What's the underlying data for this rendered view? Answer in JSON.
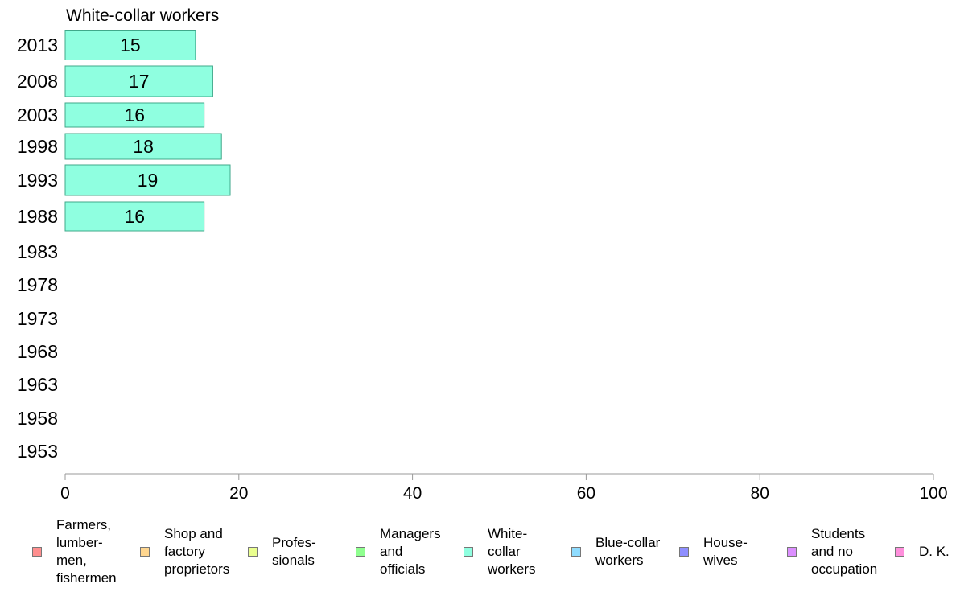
{
  "chart_data": {
    "type": "bar",
    "orientation": "horizontal",
    "title": "White-collar workers",
    "xlabel": "",
    "ylabel": "",
    "xlim": [
      0,
      100
    ],
    "x_ticks": [
      "0",
      "20",
      "40",
      "60",
      "80",
      "100"
    ],
    "categories": [
      "2013",
      "2008",
      "2003",
      "1998",
      "1993",
      "1988",
      "1983",
      "1978",
      "1973",
      "1968",
      "1963",
      "1958",
      "1953"
    ],
    "values": [
      15,
      17,
      16,
      18,
      19,
      16,
      null,
      null,
      null,
      null,
      null,
      null,
      null
    ],
    "data_labels": [
      "15",
      "17",
      "16",
      "18",
      "19",
      "16",
      "",
      "",
      "",
      "",
      "",
      "",
      ""
    ],
    "bar_color": "#8fffe0",
    "bar_stroke": "#3fa88a",
    "grid": false,
    "legend_position": "bottom",
    "legend": [
      {
        "label": "Farmers,\nlumber-\nmen,\nfishermen",
        "color": "#ff8f8f"
      },
      {
        "label": "Shop and\nfactory\nproprietors",
        "color": "#ffd68f"
      },
      {
        "label": "Profes-\nsionals",
        "color": "#eaff8f"
      },
      {
        "label": "Managers\nand\nofficials",
        "color": "#8fff8f"
      },
      {
        "label": "White-\ncollar\nworkers",
        "color": "#8fffe0"
      },
      {
        "label": "Blue-collar\nworkers",
        "color": "#8fdcff"
      },
      {
        "label": "House-\nwives",
        "color": "#8f8fff"
      },
      {
        "label": "Students\nand no\noccupation",
        "color": "#dc8fff"
      },
      {
        "label": "D. K.",
        "color": "#ff8fdc"
      }
    ]
  }
}
